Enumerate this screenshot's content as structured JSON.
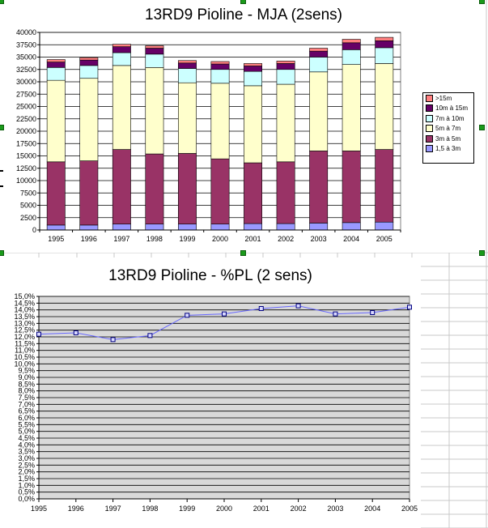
{
  "chart_data": [
    {
      "type": "bar",
      "stacked": true,
      "title": "13RD9 Pioline - MJA (2sens)",
      "categories": [
        "1995",
        "1996",
        "1997",
        "1998",
        "1999",
        "2000",
        "2001",
        "2002",
        "2003",
        "2004",
        "2005"
      ],
      "ylim": [
        0,
        40000
      ],
      "yticks": [
        "0",
        "2500",
        "5000",
        "7500",
        "10000",
        "12500",
        "15000",
        "17500",
        "20000",
        "22500",
        "25000",
        "27500",
        "30000",
        "32500",
        "35000",
        "37500",
        "40000"
      ],
      "grid": true,
      "legend_position": "right",
      "series": [
        {
          "name": "1,5 à 3m",
          "color": "#9999ff",
          "values": [
            1000,
            1000,
            1200,
            1200,
            1200,
            1200,
            1300,
            1300,
            1400,
            1500,
            1600
          ]
        },
        {
          "name": "3m à 5m",
          "color": "#993366",
          "values": [
            12800,
            13000,
            15100,
            14200,
            14300,
            13200,
            12300,
            12500,
            14600,
            14500,
            14700
          ]
        },
        {
          "name": "5m à 7m",
          "color": "#ffffcc",
          "values": [
            16500,
            16700,
            17000,
            17500,
            14300,
            15300,
            15600,
            15700,
            16000,
            17500,
            17400
          ]
        },
        {
          "name": "7m à 10m",
          "color": "#ccffff",
          "values": [
            2600,
            2600,
            2600,
            2700,
            2900,
            2800,
            2900,
            3000,
            3000,
            3000,
            3200
          ]
        },
        {
          "name": "10m à 15m",
          "color": "#660066",
          "values": [
            1100,
            1100,
            1200,
            1200,
            1100,
            1100,
            1100,
            1200,
            1200,
            1400,
            1400
          ]
        },
        {
          "name": ">15m",
          "color": "#ff8080",
          "values": [
            500,
            500,
            500,
            500,
            500,
            500,
            500,
            500,
            600,
            700,
            700
          ]
        }
      ]
    },
    {
      "type": "line",
      "title": "13RD9 Pioline - %PL (2 sens)",
      "categories": [
        "1995",
        "1996",
        "1997",
        "1998",
        "1999",
        "2000",
        "2001",
        "2002",
        "2003",
        "2004",
        "2005"
      ],
      "ylim": [
        0,
        15
      ],
      "yticks": [
        "0,0%",
        "0,5%",
        "1,0%",
        "1,5%",
        "2,0%",
        "2,5%",
        "3,0%",
        "3,5%",
        "4,0%",
        "4,5%",
        "5,0%",
        "5,5%",
        "6,0%",
        "6,5%",
        "7,0%",
        "7,5%",
        "8,0%",
        "8,5%",
        "9,0%",
        "9,5%",
        "10,0%",
        "10,5%",
        "11,0%",
        "11,5%",
        "12,0%",
        "12,5%",
        "13,0%",
        "13,5%",
        "14,0%",
        "14,5%",
        "15,0%"
      ],
      "grid": true,
      "background": "#d9d9d9",
      "series": [
        {
          "color": "#6666ff",
          "values": [
            12.2,
            12.3,
            11.8,
            12.1,
            13.6,
            13.7,
            14.1,
            14.3,
            13.7,
            13.8,
            14.2
          ]
        }
      ]
    }
  ]
}
